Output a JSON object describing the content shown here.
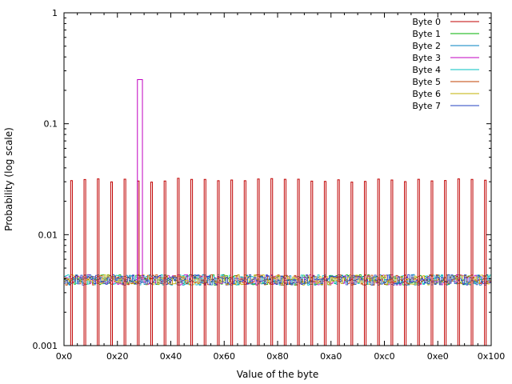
{
  "chart_data": {
    "type": "histogram",
    "title": "",
    "xlabel": "Value of the byte",
    "ylabel": "Probability (log scale)",
    "xlim": [
      0,
      256
    ],
    "ylim": [
      0.001,
      1
    ],
    "y_scale": "log",
    "x_ticks": [
      {
        "value": 0,
        "label": "0x0"
      },
      {
        "value": 32,
        "label": "0x20"
      },
      {
        "value": 64,
        "label": "0x40"
      },
      {
        "value": 96,
        "label": "0x60"
      },
      {
        "value": 128,
        "label": "0x80"
      },
      {
        "value": 160,
        "label": "0xa0"
      },
      {
        "value": 192,
        "label": "0xc0"
      },
      {
        "value": 224,
        "label": "0xe0"
      },
      {
        "value": 256,
        "label": "0x100"
      }
    ],
    "y_ticks": [
      {
        "value": 0.001,
        "label": "0.001"
      },
      {
        "value": 0.01,
        "label": "0.01"
      },
      {
        "value": 0.1,
        "label": "0.1"
      },
      {
        "value": 1,
        "label": "1"
      }
    ],
    "legend_position": "top-right",
    "series": [
      {
        "name": "Byte 0",
        "color": "#c00000",
        "spikes_at": [
          4,
          12,
          20,
          28,
          36,
          44,
          52,
          60,
          68,
          76,
          84,
          92,
          100,
          108,
          116,
          124,
          132,
          140,
          148,
          156,
          164,
          172,
          180,
          188,
          196,
          204,
          212,
          220,
          228,
          236,
          244,
          252
        ],
        "spike_value": 0.031,
        "base_value": 0.0038
      },
      {
        "name": "Byte 1",
        "color": "#00b000",
        "base_value": 0.0039
      },
      {
        "name": "Byte 2",
        "color": "#0080c0",
        "base_value": 0.0039
      },
      {
        "name": "Byte 3",
        "color": "#c000c0",
        "spikes_at": [
          44,
          45,
          46
        ],
        "spike_value": 0.25,
        "base_value": 0.0039
      },
      {
        "name": "Byte 4",
        "color": "#00c0c0",
        "base_value": 0.0039
      },
      {
        "name": "Byte 5",
        "color": "#c04000",
        "base_value": 0.0039
      },
      {
        "name": "Byte 6",
        "color": "#c0b000",
        "base_value": 0.0039
      },
      {
        "name": "Byte 7",
        "color": "#2040c0",
        "base_value": 0.0039
      }
    ]
  }
}
